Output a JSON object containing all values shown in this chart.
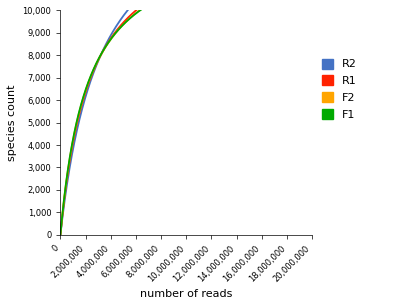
{
  "curve_params": [
    {
      "label": "R2",
      "color": "#4472C4",
      "Smax": 16000,
      "k": 3200000
    },
    {
      "label": "R1",
      "color": "#FF2200",
      "Smax": 14000,
      "k": 2400000
    },
    {
      "label": "F2",
      "color": "#FFA500",
      "Smax": 13500,
      "k": 2200000
    },
    {
      "label": "F1",
      "color": "#00AA00",
      "Smax": 13400,
      "k": 2150000
    }
  ],
  "xlim": [
    0,
    20000000
  ],
  "ylim": [
    0,
    10000
  ],
  "xlabel": "number of reads",
  "ylabel": "species count",
  "xticks": [
    0,
    2000000,
    4000000,
    6000000,
    8000000,
    10000000,
    12000000,
    14000000,
    16000000,
    18000000,
    20000000
  ],
  "yticks": [
    0,
    1000,
    2000,
    3000,
    4000,
    5000,
    6000,
    7000,
    8000,
    9000,
    10000
  ],
  "legend_labels": [
    "R2",
    "R1",
    "F2",
    "F1"
  ],
  "legend_colors": [
    "#4472C4",
    "#FF2200",
    "#FFA500",
    "#00AA00"
  ],
  "bg_color": "#FFFFFF",
  "line_width": 1.3,
  "tick_fontsize": 6,
  "label_fontsize": 8,
  "legend_fontsize": 8
}
